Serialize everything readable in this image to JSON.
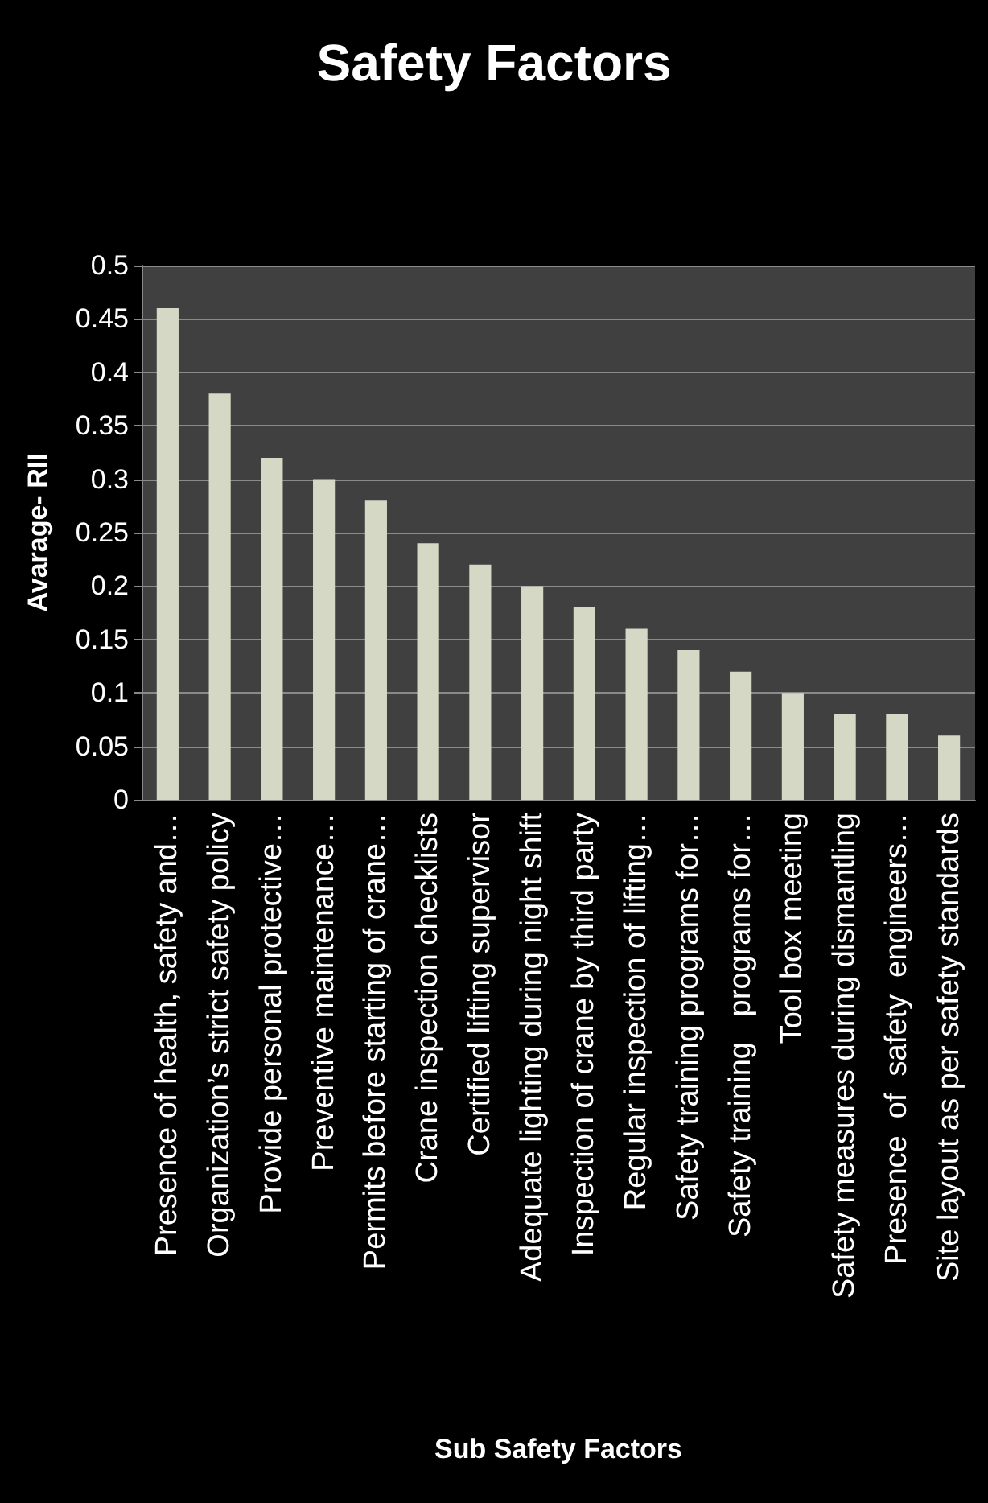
{
  "chart_data": {
    "type": "bar",
    "title": "Safety Factors",
    "xlabel": "Sub Safety Factors",
    "ylabel": "Avarage- RII",
    "categories": [
      "Presence of health, safety and…",
      "Organization’s strict safety policy",
      "Provide personal protective…",
      "Preventive maintenance…",
      "Permits before starting of crane…",
      "Crane inspection checklists",
      "Certified lifting supervisor",
      "Adequate lighting during night shift",
      "Inspection of crane by third party",
      "Regular inspection of lifting…",
      "Safety training programs for…",
      "Safety training   programs for…",
      "Tool box meeting",
      "Safety measures during dismantling",
      "Presence  of  safety  engineers…",
      "Site layout as per safety standards"
    ],
    "values": [
      0.46,
      0.38,
      0.32,
      0.3,
      0.28,
      0.24,
      0.22,
      0.2,
      0.18,
      0.16,
      0.14,
      0.12,
      0.1,
      0.08,
      0.08,
      0.06
    ],
    "color": "#d4d8c4",
    "ylim": [
      0,
      0.5
    ],
    "yticks": [
      0,
      0.05,
      0.1,
      0.15,
      0.2,
      0.25,
      0.3,
      0.35,
      0.4,
      0.45,
      0.5
    ],
    "grid": "y"
  }
}
